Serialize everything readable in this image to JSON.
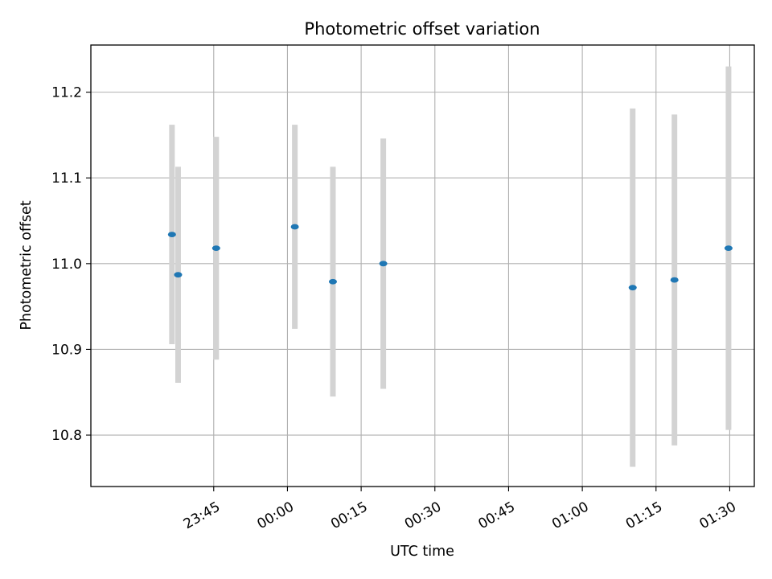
{
  "chart_data": {
    "type": "scatter",
    "title": "Photometric offset variation",
    "xlabel": "UTC time",
    "ylabel": "Photometric offset",
    "x_axis_type": "time",
    "xlim": [
      "23:20",
      "01:35"
    ],
    "ylim": [
      10.74,
      11.255
    ],
    "x_ticks": [
      "23:45",
      "00:00",
      "00:15",
      "00:30",
      "00:45",
      "01:00",
      "01:15",
      "01:30"
    ],
    "y_ticks": [
      "10.8",
      "10.9",
      "11.0",
      "11.1",
      "11.2"
    ],
    "grid": true,
    "error_bars": true,
    "colors": {
      "marker": "#1f77b4",
      "error_bar": "#d3d3d3",
      "grid": "#b0b0b0"
    },
    "points": [
      {
        "x": "23:36:30",
        "y": 11.034,
        "yerr": 0.128
      },
      {
        "x": "23:37:45",
        "y": 10.987,
        "yerr": 0.126
      },
      {
        "x": "23:45:30",
        "y": 11.018,
        "yerr": 0.13
      },
      {
        "x": "00:01:30",
        "y": 11.043,
        "yerr": 0.119
      },
      {
        "x": "00:09:15",
        "y": 10.979,
        "yerr": 0.134
      },
      {
        "x": "00:19:30",
        "y": 11.0,
        "yerr": 0.146
      },
      {
        "x": "01:10:15",
        "y": 10.972,
        "yerr": 0.209
      },
      {
        "x": "01:18:45",
        "y": 10.981,
        "yerr": 0.193
      },
      {
        "x": "01:29:45",
        "y": 11.018,
        "yerr": 0.212
      }
    ]
  }
}
